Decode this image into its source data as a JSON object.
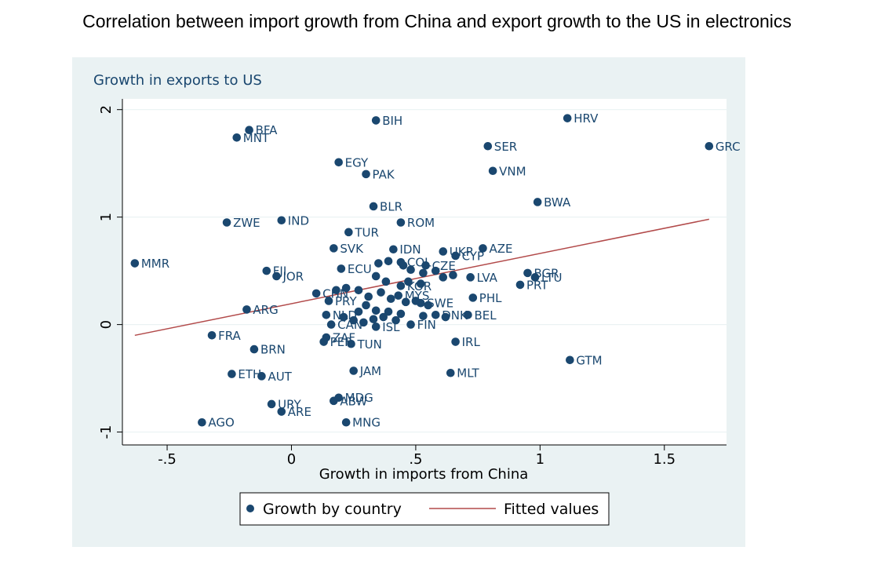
{
  "title": "Correlation between import growth from China and export growth to the US in electronics",
  "chart_data": {
    "type": "scatter",
    "ylabel": "Growth in exports to US",
    "xlabel": "Growth in imports from China",
    "xlim": [
      -0.68,
      1.75
    ],
    "ylim": [
      -1.12,
      2.1
    ],
    "x_ticks": [
      {
        "value": -0.5,
        "label": "-.5"
      },
      {
        "value": 0,
        "label": "0"
      },
      {
        "value": 0.5,
        "label": ".5"
      },
      {
        "value": 1,
        "label": "1"
      },
      {
        "value": 1.5,
        "label": "1.5"
      }
    ],
    "y_ticks": [
      {
        "value": -1,
        "label": "-1"
      },
      {
        "value": 0,
        "label": "0"
      },
      {
        "value": 1,
        "label": "1"
      },
      {
        "value": 2,
        "label": "2"
      }
    ],
    "marker_color": "#1a476f",
    "fit_color": "#b24a4a",
    "plot_bg": "#ffffff",
    "panel_bg": "#eaf2f3",
    "grid": "horizontal",
    "legend": {
      "position": "bottom",
      "items": [
        {
          "label": "Growth by country",
          "kind": "marker"
        },
        {
          "label": "Fitted values",
          "kind": "line"
        }
      ]
    },
    "series": [
      {
        "name": "Growth by country",
        "points": [
          {
            "label": "HRV",
            "x": 1.11,
            "y": 1.92
          },
          {
            "label": "BIH",
            "x": 0.34,
            "y": 1.9
          },
          {
            "label": "BFA",
            "x": -0.17,
            "y": 1.81
          },
          {
            "label": "MNT",
            "x": -0.22,
            "y": 1.74
          },
          {
            "label": "SER",
            "x": 0.79,
            "y": 1.66
          },
          {
            "label": "GRC",
            "x": 1.68,
            "y": 1.66
          },
          {
            "label": "EGY",
            "x": 0.19,
            "y": 1.51
          },
          {
            "label": "VNM",
            "x": 0.81,
            "y": 1.43
          },
          {
            "label": "PAK",
            "x": 0.3,
            "y": 1.4
          },
          {
            "label": "BWA",
            "x": 0.99,
            "y": 1.14
          },
          {
            "label": "BLR",
            "x": 0.33,
            "y": 1.1
          },
          {
            "label": "ZWE",
            "x": -0.26,
            "y": 0.95
          },
          {
            "label": "IND",
            "x": -0.04,
            "y": 0.97
          },
          {
            "label": "ROM",
            "x": 0.44,
            "y": 0.95
          },
          {
            "label": "TUR",
            "x": 0.23,
            "y": 0.86
          },
          {
            "label": "SVK",
            "x": 0.17,
            "y": 0.71
          },
          {
            "label": "IDN",
            "x": 0.41,
            "y": 0.7
          },
          {
            "label": "UKR",
            "x": 0.61,
            "y": 0.68
          },
          {
            "label": "AZE",
            "x": 0.77,
            "y": 0.71
          },
          {
            "label": "CYP",
            "x": 0.66,
            "y": 0.64
          },
          {
            "label": "MMR",
            "x": -0.63,
            "y": 0.57
          },
          {
            "label": "FJI",
            "x": -0.1,
            "y": 0.5
          },
          {
            "label": "JOR",
            "x": -0.06,
            "y": 0.45
          },
          {
            "label": "ECU",
            "x": 0.2,
            "y": 0.52
          },
          {
            "label": "COL",
            "x": 0.44,
            "y": 0.58
          },
          {
            "label": "CZE",
            "x": 0.54,
            "y": 0.55
          },
          {
            "label": "LVA",
            "x": 0.72,
            "y": 0.44
          },
          {
            "label": "BGR",
            "x": 0.95,
            "y": 0.48
          },
          {
            "label": "LTU",
            "x": 0.98,
            "y": 0.44
          },
          {
            "label": "PRT",
            "x": 0.92,
            "y": 0.37
          },
          {
            "label": "KOR",
            "x": 0.44,
            "y": 0.36
          },
          {
            "label": "CHN",
            "x": 0.1,
            "y": 0.29
          },
          {
            "label": "PHL",
            "x": 0.73,
            "y": 0.25
          },
          {
            "label": "PRY",
            "x": 0.15,
            "y": 0.22
          },
          {
            "label": "MYS",
            "x": 0.43,
            "y": 0.27
          },
          {
            "label": "SWE",
            "x": 0.52,
            "y": 0.2
          },
          {
            "label": "ARG",
            "x": -0.18,
            "y": 0.14
          },
          {
            "label": "BEL",
            "x": 0.71,
            "y": 0.09
          },
          {
            "label": "DNK",
            "x": 0.58,
            "y": 0.09
          },
          {
            "label": "NLD",
            "x": 0.14,
            "y": 0.09
          },
          {
            "label": "CAN",
            "x": 0.16,
            "y": 0.0
          },
          {
            "label": "ISL",
            "x": 0.34,
            "y": -0.02
          },
          {
            "label": "FIN",
            "x": 0.48,
            "y": 0.0
          },
          {
            "label": "FRA",
            "x": -0.32,
            "y": -0.1
          },
          {
            "label": "ZAF",
            "x": 0.14,
            "y": -0.12
          },
          {
            "label": "PER",
            "x": 0.13,
            "y": -0.16
          },
          {
            "label": "TUN",
            "x": 0.24,
            "y": -0.18
          },
          {
            "label": "IRL",
            "x": 0.66,
            "y": -0.16
          },
          {
            "label": "BRN",
            "x": -0.15,
            "y": -0.23
          },
          {
            "label": "GTM",
            "x": 1.12,
            "y": -0.33
          },
          {
            "label": "JAM",
            "x": 0.25,
            "y": -0.43
          },
          {
            "label": "MLT",
            "x": 0.64,
            "y": -0.45
          },
          {
            "label": "ETH",
            "x": -0.24,
            "y": -0.46
          },
          {
            "label": "AUT",
            "x": -0.12,
            "y": -0.48
          },
          {
            "label": "MDG",
            "x": 0.19,
            "y": -0.68
          },
          {
            "label": "ABW",
            "x": 0.17,
            "y": -0.71
          },
          {
            "label": "URY",
            "x": -0.08,
            "y": -0.74
          },
          {
            "label": "ARE",
            "x": -0.04,
            "y": -0.81
          },
          {
            "label": "AGO",
            "x": -0.36,
            "y": -0.91
          },
          {
            "label": "MNG",
            "x": 0.22,
            "y": -0.91
          },
          {
            "label": "",
            "x": 0.35,
            "y": 0.57
          },
          {
            "label": "",
            "x": 0.39,
            "y": 0.59
          },
          {
            "label": "",
            "x": 0.45,
            "y": 0.55
          },
          {
            "label": "",
            "x": 0.48,
            "y": 0.51
          },
          {
            "label": "",
            "x": 0.53,
            "y": 0.48
          },
          {
            "label": "",
            "x": 0.58,
            "y": 0.5
          },
          {
            "label": "",
            "x": 0.61,
            "y": 0.44
          },
          {
            "label": "",
            "x": 0.65,
            "y": 0.46
          },
          {
            "label": "",
            "x": 0.34,
            "y": 0.45
          },
          {
            "label": "",
            "x": 0.38,
            "y": 0.4
          },
          {
            "label": "",
            "x": 0.47,
            "y": 0.4
          },
          {
            "label": "",
            "x": 0.52,
            "y": 0.38
          },
          {
            "label": "",
            "x": 0.22,
            "y": 0.34
          },
          {
            "label": "",
            "x": 0.27,
            "y": 0.32
          },
          {
            "label": "",
            "x": 0.18,
            "y": 0.32
          },
          {
            "label": "",
            "x": 0.36,
            "y": 0.3
          },
          {
            "label": "",
            "x": 0.31,
            "y": 0.26
          },
          {
            "label": "",
            "x": 0.4,
            "y": 0.24
          },
          {
            "label": "",
            "x": 0.46,
            "y": 0.21
          },
          {
            "label": "",
            "x": 0.5,
            "y": 0.22
          },
          {
            "label": "",
            "x": 0.55,
            "y": 0.18
          },
          {
            "label": "",
            "x": 0.3,
            "y": 0.18
          },
          {
            "label": "",
            "x": 0.34,
            "y": 0.13
          },
          {
            "label": "",
            "x": 0.27,
            "y": 0.12
          },
          {
            "label": "",
            "x": 0.39,
            "y": 0.12
          },
          {
            "label": "",
            "x": 0.44,
            "y": 0.1
          },
          {
            "label": "",
            "x": 0.53,
            "y": 0.08
          },
          {
            "label": "",
            "x": 0.62,
            "y": 0.07
          },
          {
            "label": "",
            "x": 0.21,
            "y": 0.07
          },
          {
            "label": "",
            "x": 0.25,
            "y": 0.04
          },
          {
            "label": "",
            "x": 0.29,
            "y": 0.02
          },
          {
            "label": "",
            "x": 0.33,
            "y": 0.05
          },
          {
            "label": "",
            "x": 0.37,
            "y": 0.07
          },
          {
            "label": "",
            "x": 0.42,
            "y": 0.04
          }
        ]
      },
      {
        "name": "Fitted values",
        "kind": "line",
        "x": [
          -0.63,
          1.68
        ],
        "y": [
          -0.1,
          0.98
        ]
      }
    ]
  }
}
